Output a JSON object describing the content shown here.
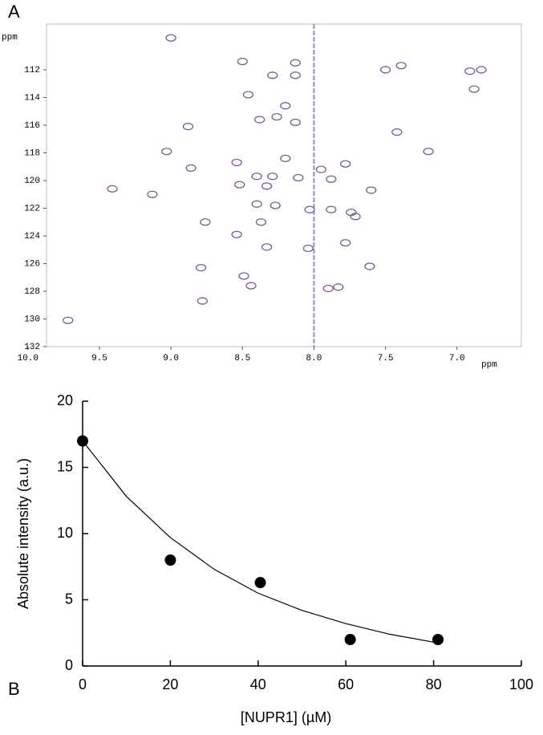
{
  "chart_data": [
    {
      "type": "scatter",
      "panel_label": "A",
      "xlabel": "ppm",
      "ylabel": "ppm",
      "color": "#7b5a93",
      "x": [
        9.0,
        8.5,
        8.13,
        8.29,
        8.13,
        7.5,
        7.39,
        6.91,
        6.83,
        6.88,
        8.46,
        8.2,
        8.38,
        8.26,
        8.13,
        8.88,
        7.42,
        7.2,
        9.03,
        8.86,
        8.54,
        8.2,
        7.78,
        7.95,
        8.4,
        8.29,
        8.11,
        7.88,
        8.52,
        8.33,
        7.6,
        9.41,
        9.13,
        8.4,
        8.27,
        8.03,
        7.88,
        7.74,
        7.71,
        8.37,
        8.76,
        8.54,
        8.33,
        8.04,
        7.78,
        8.79,
        8.49,
        8.44,
        7.9,
        7.83,
        8.78,
        9.72,
        7.61
      ],
      "values": [
        109.7,
        111.4,
        111.5,
        112.4,
        112.4,
        112.0,
        111.7,
        112.1,
        112.0,
        113.4,
        113.8,
        114.6,
        115.6,
        115.4,
        115.8,
        116.1,
        116.5,
        117.9,
        117.9,
        119.1,
        118.7,
        118.4,
        118.8,
        119.2,
        119.7,
        119.7,
        119.8,
        119.9,
        120.3,
        120.4,
        120.7,
        120.6,
        121.0,
        121.7,
        121.8,
        122.1,
        122.1,
        122.3,
        122.6,
        123.0,
        123.0,
        123.9,
        124.8,
        124.9,
        124.5,
        126.3,
        126.9,
        127.6,
        127.8,
        127.7,
        128.7,
        130.1,
        126.2
      ],
      "xlim": [
        9.87,
        6.55
      ],
      "ylim": [
        108.7,
        132
      ],
      "xticks": [
        {
          "value": 10.0,
          "label": "10.0"
        },
        9.5,
        {
          "value": 9.0,
          "label": "9.0"
        },
        8.5,
        {
          "value": 8.0,
          "label": "8.0"
        },
        7.5,
        {
          "value": 7.0,
          "label": "7.0"
        }
      ],
      "yticks": [
        112,
        114,
        116,
        118,
        120,
        122,
        124,
        126,
        128,
        130,
        132
      ]
    },
    {
      "type": "scatter",
      "panel_label": "B",
      "xlabel": "[NUPR1] (µM)",
      "ylabel": "Absolute intensity (a.u.)",
      "color": "#000000",
      "x": [
        0,
        20,
        40.5,
        61,
        81
      ],
      "values": [
        17,
        8,
        6.3,
        2,
        2
      ],
      "fit": {
        "x": [
          0,
          10,
          20,
          30,
          40,
          50,
          60,
          70,
          80
        ],
        "values": [
          17,
          12.8,
          9.7,
          7.3,
          5.5,
          4.2,
          3.2,
          2.4,
          1.8
        ]
      },
      "xlim": [
        0,
        100
      ],
      "ylim": [
        0,
        20
      ],
      "xticks": [
        0,
        20,
        40,
        60,
        80,
        100
      ],
      "yticks": [
        0,
        5,
        10,
        15,
        20
      ]
    }
  ]
}
